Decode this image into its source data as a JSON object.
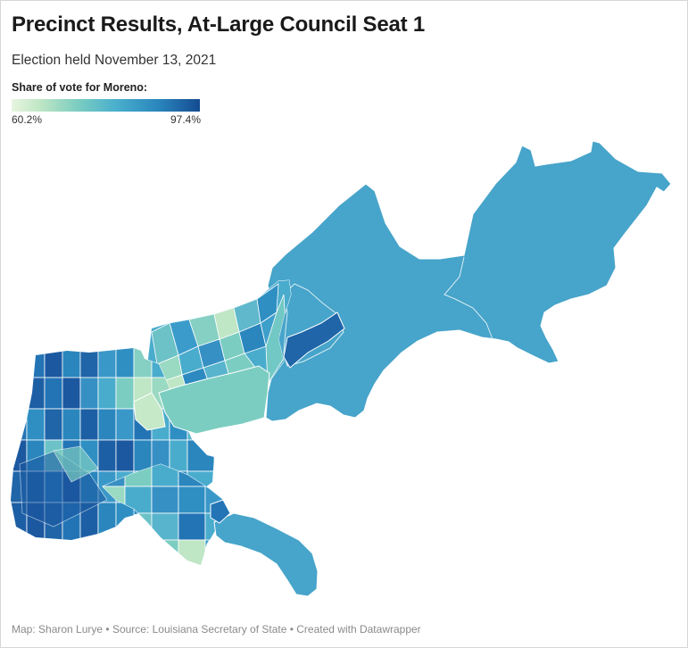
{
  "title": "Precinct Results, At-Large Council Seat 1",
  "subtitle": "Election held November 13, 2021",
  "legend": {
    "title": "Share of vote for Moreno:",
    "min_label": "60.2%",
    "max_label": "97.4%",
    "min_value": 60.2,
    "max_value": 97.4,
    "colors": [
      "#e8f5e0",
      "#bfe6c5",
      "#7ccdc1",
      "#4ab0cd",
      "#2a86bd",
      "#144b91"
    ]
  },
  "map": {
    "candidate": "Moreno",
    "border_color": "#ffffff"
  },
  "footer": {
    "credit": "Map: Sharon Lurye",
    "source": "Source: Louisiana Secretary of State",
    "tool": "Created with Datawrapper",
    "separator": " • "
  }
}
